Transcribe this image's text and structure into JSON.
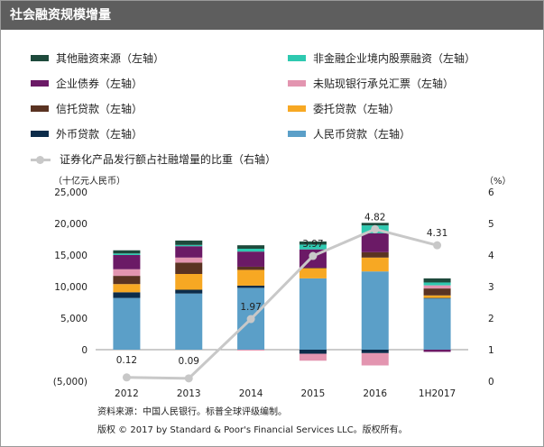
{
  "header": {
    "title": "社会融资规模增量"
  },
  "legend": [
    {
      "label": "其他融资来源（左轴）",
      "color": "#1e4a3c"
    },
    {
      "label": "非金融企业境内股票融资（左轴）",
      "color": "#2ec9b0"
    },
    {
      "label": "企业债券（左轴）",
      "color": "#6b1a66"
    },
    {
      "label": "未贴现银行承兑汇票（左轴）",
      "color": "#e395b0"
    },
    {
      "label": "信托贷款（左轴）",
      "color": "#5a3322"
    },
    {
      "label": "委托贷款（左轴）",
      "color": "#f7a823"
    },
    {
      "label": "外币贷款（左轴）",
      "color": "#0c2c4a"
    },
    {
      "label": "人民币贷款（左轴）",
      "color": "#5b9fc8"
    },
    {
      "label": "证券化产品发行额占社融增量的比重（右轴）",
      "color": "#c8c8c8"
    }
  ],
  "chart_data": {
    "type": "bar",
    "stacked": true,
    "categories": [
      "2012",
      "2013",
      "2014",
      "2015",
      "2016",
      "1H2017"
    ],
    "y_left_label": "（十亿元人民币）",
    "y_right_label": "（%）",
    "y_left_range": [
      -5000,
      25000
    ],
    "y_left_ticks": [
      "(5,000)",
      "0",
      "5,000",
      "10,000",
      "15,000",
      "20,000",
      "25,000"
    ],
    "y_right_range": [
      0,
      6
    ],
    "y_right_ticks": [
      "0",
      "1",
      "2",
      "3",
      "4",
      "5",
      "6"
    ],
    "series": [
      {
        "name": "人民币贷款（左轴）",
        "color": "#5b9fc8",
        "values": [
          8200,
          8900,
          9800,
          11300,
          12400,
          8100
        ]
      },
      {
        "name": "外币贷款（左轴）",
        "color": "#0c2c4a",
        "values": [
          900,
          600,
          350,
          -650,
          -550,
          100
        ]
      },
      {
        "name": "委托贷款（左轴）",
        "color": "#f7a823",
        "values": [
          1300,
          2500,
          2500,
          1600,
          2200,
          400
        ]
      },
      {
        "name": "信托贷款（左轴）",
        "color": "#5a3322",
        "values": [
          1300,
          1800,
          500,
          100,
          850,
          1100
        ]
      },
      {
        "name": "未贴现银行承兑汇票（左轴）",
        "color": "#e395b0",
        "values": [
          1050,
          800,
          -150,
          -1100,
          -1950,
          500
        ]
      },
      {
        "name": "企业债券（左轴）",
        "color": "#6b1a66",
        "values": [
          2250,
          1800,
          2400,
          2900,
          3000,
          -350
        ]
      },
      {
        "name": "非金融企业境内股票融资（左轴）",
        "color": "#2ec9b0",
        "values": [
          250,
          200,
          450,
          750,
          1250,
          450
        ]
      },
      {
        "name": "其他融资来源（左轴）",
        "color": "#1e4a3c",
        "values": [
          500,
          700,
          550,
          500,
          400,
          650
        ]
      }
    ],
    "line": {
      "name": "证券化产品发行额占社融增量的比重（右轴）",
      "color": "#c8c8c8",
      "values": [
        0.12,
        0.09,
        1.97,
        3.97,
        4.82,
        4.31
      ],
      "labels": [
        "0.12",
        "0.09",
        "1.97",
        "3.97",
        "4.82",
        "4.31"
      ]
    }
  },
  "footer": {
    "source": "资料来源：中国人民银行。标普全球评级编制。",
    "copyright": "版权 © 2017 by Standard & Poor's Financial Services LLC。版权所有。"
  }
}
